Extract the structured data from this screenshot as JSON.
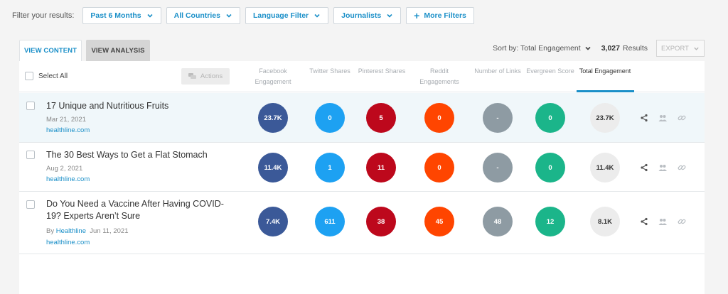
{
  "filters": {
    "label": "Filter your results:",
    "buttons": [
      {
        "label": "Past 6 Months"
      },
      {
        "label": "All Countries"
      },
      {
        "label": "Language Filter"
      },
      {
        "label": "Journalists"
      }
    ],
    "more_label": "More Filters"
  },
  "tabs": {
    "content": "VIEW CONTENT",
    "analysis": "VIEW ANALYSIS"
  },
  "sort": {
    "label": "Sort by: Total Engagement",
    "results_count": "3,027",
    "results_label": "Results",
    "export": "EXPORT"
  },
  "table": {
    "select_all": "Select All",
    "actions": "Actions",
    "columns": [
      {
        "label": "Facebook Engagement"
      },
      {
        "label": "Twitter Shares"
      },
      {
        "label": "Pinterest Shares"
      },
      {
        "label": "Reddit Engagements"
      },
      {
        "label": "Number of Links"
      },
      {
        "label": "Evergreen Score"
      },
      {
        "label": "Total Engagement"
      }
    ],
    "rows": [
      {
        "title": "17 Unique and Nutritious Fruits",
        "by": "",
        "author": "",
        "date": "Mar 21, 2021",
        "domain": "healthline.com",
        "values": [
          "23.7K",
          "0",
          "5",
          "0",
          "-",
          "0",
          "23.7K"
        ]
      },
      {
        "title": "The 30 Best Ways to Get a Flat Stomach",
        "by": "",
        "author": "",
        "date": "Aug 2, 2021",
        "domain": "healthline.com",
        "values": [
          "11.4K",
          "1",
          "11",
          "0",
          "-",
          "0",
          "11.4K"
        ]
      },
      {
        "title": "Do You Need a Vaccine After Having COVID-19? Experts Aren’t Sure",
        "by": "By",
        "author": "Healthline",
        "date": "Jun 11, 2021",
        "domain": "healthline.com",
        "values": [
          "7.4K",
          "611",
          "38",
          "45",
          "48",
          "12",
          "8.1K"
        ]
      }
    ]
  },
  "colors": {
    "accent": "#1a8fc8",
    "facebook": "#3b5998",
    "twitter": "#1da1f2",
    "pinterest": "#bd081c",
    "reddit": "#ff4500",
    "links": "#8e9ba3",
    "evergreen": "#1bb58a",
    "total": "#ececec"
  },
  "icons": {
    "share": "share-icon",
    "people": "people-icon",
    "link": "link-icon",
    "chevron": "chevron-down-icon",
    "plus": "plus-icon",
    "chat": "chat-icon"
  }
}
